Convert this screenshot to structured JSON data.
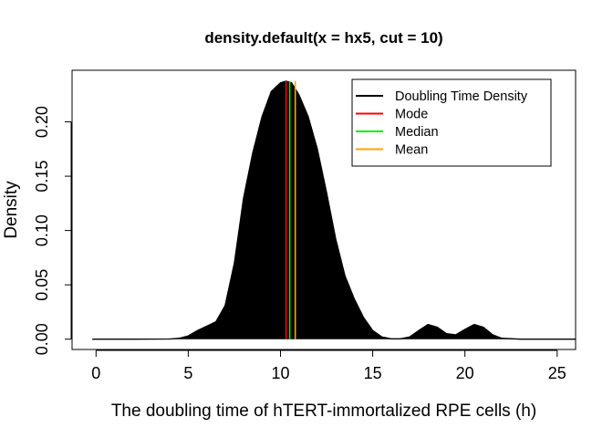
{
  "chart_data": {
    "type": "area",
    "title": "density.default(x = hx5, cut = 10)",
    "xlabel": "The doubling time of hTERT-immortalized RPE cells (h)",
    "ylabel": "Density",
    "xlim": [
      -1.3,
      26.0
    ],
    "ylim": [
      -0.0095,
      0.2475
    ],
    "x_ticks": [
      0,
      5,
      10,
      15,
      20,
      25
    ],
    "y_ticks": [
      0.0,
      0.05,
      0.1,
      0.15,
      0.2
    ],
    "y_tick_labels": [
      "0.00",
      "0.05",
      "0.10",
      "0.15",
      "0.20"
    ],
    "grid": false,
    "legend_position": "top-right",
    "density_curve": {
      "name": "Doubling Time Density",
      "color": "#000000",
      "x": [
        -0.2,
        2,
        4,
        4.5,
        5,
        5.5,
        6,
        6.5,
        7,
        7.5,
        8,
        8.5,
        9,
        9.5,
        10,
        10.3,
        10.6,
        11,
        11.5,
        12,
        12.5,
        13,
        13.5,
        14,
        14.5,
        15,
        15.5,
        16,
        16.5,
        17,
        17.5,
        18,
        18.5,
        19,
        19.5,
        20,
        20.5,
        21,
        21.5,
        22,
        23,
        24,
        25,
        26
      ],
      "y": [
        0,
        0,
        0.0002,
        0.0008,
        0.003,
        0.008,
        0.012,
        0.016,
        0.031,
        0.07,
        0.13,
        0.172,
        0.205,
        0.228,
        0.236,
        0.2375,
        0.236,
        0.225,
        0.205,
        0.175,
        0.135,
        0.092,
        0.058,
        0.037,
        0.02,
        0.008,
        0.002,
        0.0003,
        0.0003,
        0.002,
        0.008,
        0.0135,
        0.011,
        0.005,
        0.004,
        0.009,
        0.0135,
        0.011,
        0.004,
        0.0008,
        0,
        0,
        0,
        0
      ]
    },
    "vlines": [
      {
        "name": "Mode",
        "x": 10.3,
        "color": "#ff0000"
      },
      {
        "name": "Median",
        "x": 10.5,
        "color": "#00ee00"
      },
      {
        "name": "Mean",
        "x": 10.8,
        "color": "#ffa500"
      }
    ],
    "legend": [
      {
        "label": "Doubling Time Density",
        "color": "#000000"
      },
      {
        "label": "Mode",
        "color": "#ff0000"
      },
      {
        "label": "Median",
        "color": "#00ee00"
      },
      {
        "label": "Mean",
        "color": "#ffa500"
      }
    ]
  }
}
